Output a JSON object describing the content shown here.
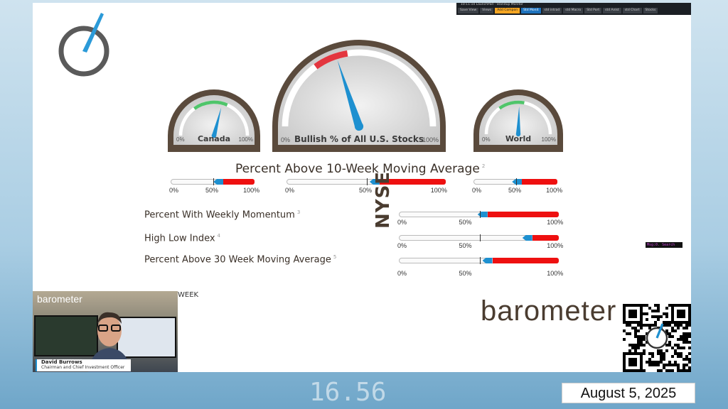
{
  "app_bar": {
    "title": "10:11:10 LaunchPad - Standup Monitor",
    "options": "Options",
    "buttons": [
      "Save View",
      "Views",
      "Add Compon",
      "Std Monit",
      "std intrad",
      "std Macro",
      "Std Port",
      "std Anlst",
      "std Chart",
      "Stocks"
    ],
    "active": "Std Monit"
  },
  "gauges": [
    {
      "name": "Canada",
      "min_label": "0%",
      "max_label": "100%",
      "value": 58,
      "arc_color": "#3cbf5a"
    },
    {
      "name": "Bullish % of All U.S. Stocks",
      "min_label": "0%",
      "max_label": "100%",
      "value": 40,
      "arc_color": "#e0202a"
    },
    {
      "name": "World",
      "min_label": "0%",
      "max_label": "100%",
      "value": 51,
      "arc_color": "#3cbf5a"
    }
  ],
  "ten_week": {
    "title": "Percent Above 10-Week Moving Average",
    "footnote": "2",
    "bars": [
      {
        "value": 62,
        "labels": [
          "0%",
          "50%",
          "100%"
        ]
      },
      {
        "value": 58,
        "labels": [
          "0%",
          "50%",
          "100%"
        ]
      },
      {
        "value": 57,
        "labels": [
          "0%",
          "50%",
          "100%"
        ]
      }
    ]
  },
  "nyse": {
    "label": "NYSE",
    "rows": [
      {
        "title": "Percent With Weekly Momentum",
        "footnote": "3",
        "value": 55,
        "labels": [
          "0%",
          "50%",
          "100%"
        ]
      },
      {
        "title": "High Low Index",
        "footnote": "4",
        "value": 83,
        "labels": [
          "0%",
          "50%",
          "100%"
        ]
      },
      {
        "title": "Percent Above 30 Week Moving Average",
        "footnote": "5",
        "value": 58,
        "labels": [
          "0%",
          "50%",
          "100%"
        ]
      }
    ]
  },
  "partial_text": "WEEK",
  "search_box": "Msg:0. Search",
  "brand": "barometer",
  "presenter": {
    "brand": "barometer",
    "name": "David Burrows",
    "role": "Chairman and Chief Investment Officer"
  },
  "date": "August 5, 2025",
  "colors": {
    "red": "#ee1010",
    "blue": "#1e90d0",
    "brown": "#5a4a3c"
  }
}
